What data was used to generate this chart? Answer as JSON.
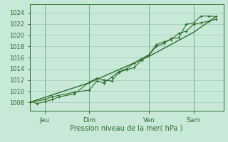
{
  "bg_color": "#c8e8d8",
  "grid_color": "#a0c8b8",
  "line_color": "#2d6e2d",
  "title": "Pression niveau de la mer( hPa )",
  "yticks": [
    1008,
    1010,
    1012,
    1014,
    1016,
    1018,
    1020,
    1022,
    1024
  ],
  "ylim": [
    1006.5,
    1025.5
  ],
  "xlim": [
    0,
    78
  ],
  "xtick_positions": [
    6,
    24,
    48,
    66
  ],
  "xtick_labels": [
    "Jeu",
    "Dim",
    "Ven",
    "Sam"
  ],
  "vlines": [
    6,
    24,
    48,
    66
  ],
  "series1_x": [
    0,
    3,
    6,
    9,
    12,
    18,
    24,
    27,
    30,
    33,
    36,
    39,
    42,
    45,
    48,
    51,
    54,
    57,
    60,
    63,
    66,
    69,
    72,
    75
  ],
  "series1_y": [
    1008.2,
    1007.8,
    1008.1,
    1008.5,
    1009.0,
    1009.5,
    1011.6,
    1012.3,
    1012.0,
    1011.8,
    1013.4,
    1013.8,
    1014.2,
    1015.5,
    1016.4,
    1018.0,
    1018.5,
    1019.4,
    1019.5,
    1021.9,
    1022.2,
    1023.4,
    1023.4,
    1023.3
  ],
  "series2_x": [
    0,
    6,
    9,
    18,
    24,
    27,
    30,
    33,
    36,
    39,
    42,
    45,
    48,
    51,
    54,
    57,
    60,
    63,
    66,
    69,
    72,
    75
  ],
  "series2_y": [
    1008.0,
    1008.5,
    1009.0,
    1009.8,
    1010.2,
    1011.8,
    1011.5,
    1012.5,
    1013.5,
    1014.0,
    1015.0,
    1015.8,
    1016.5,
    1018.3,
    1018.8,
    1019.2,
    1020.3,
    1020.7,
    1021.9,
    1022.2,
    1022.5,
    1022.8
  ],
  "series3_x": [
    0,
    24,
    48,
    66,
    75
  ],
  "series3_y": [
    1008.0,
    1011.5,
    1016.2,
    1020.5,
    1023.3
  ]
}
